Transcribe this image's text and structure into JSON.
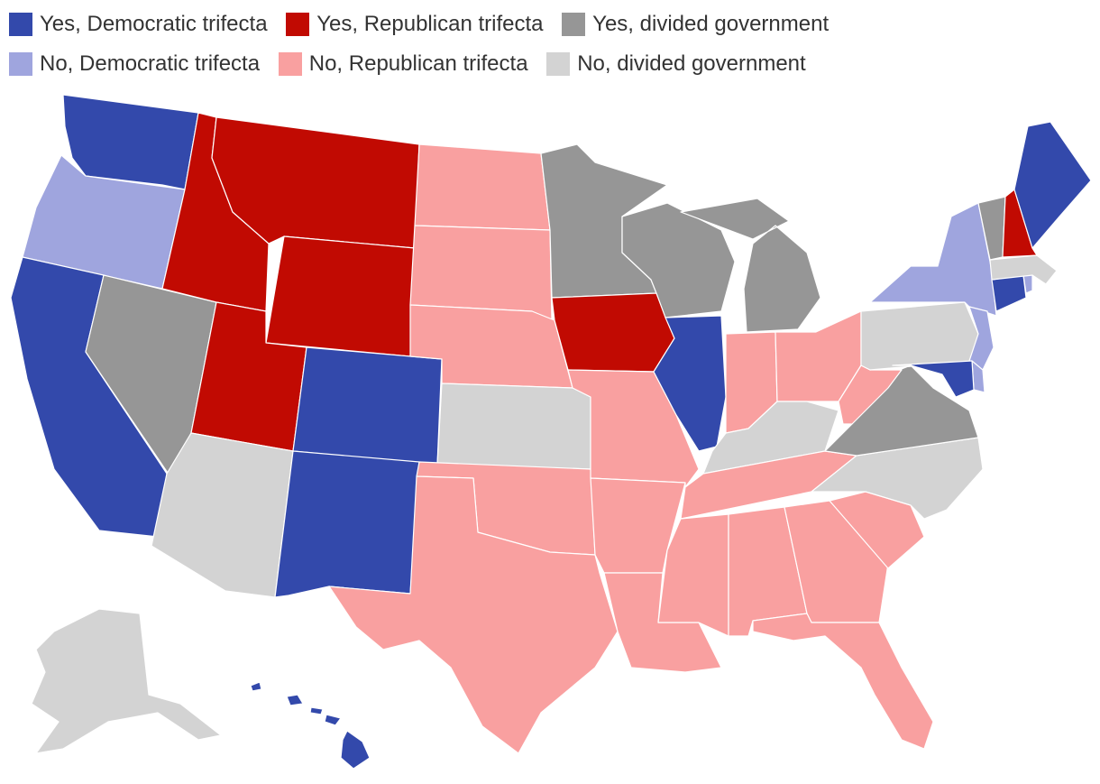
{
  "legend": [
    {
      "key": "dem_yes",
      "label": "Yes, Democratic trifecta",
      "color": "#3349ab"
    },
    {
      "key": "rep_yes",
      "label": "Yes, Republican trifecta",
      "color": "#c10a02"
    },
    {
      "key": "div_yes",
      "label": "Yes, divided government",
      "color": "#969696"
    },
    {
      "key": "dem_no",
      "label": "No, Democratic trifecta",
      "color": "#9fa5de"
    },
    {
      "key": "rep_no",
      "label": "No, Republican trifecta",
      "color": "#f9a0a0"
    },
    {
      "key": "div_no",
      "label": "No, divided government",
      "color": "#d3d3d3"
    }
  ],
  "states": {
    "WA": "dem_yes",
    "OR": "dem_no",
    "CA": "dem_yes",
    "NV": "div_yes",
    "ID": "rep_yes",
    "MT": "rep_yes",
    "WY": "rep_yes",
    "UT": "rep_yes",
    "AZ": "div_no",
    "CO": "dem_yes",
    "NM": "dem_yes",
    "ND": "rep_no",
    "SD": "rep_no",
    "NE": "rep_no",
    "KS": "div_no",
    "OK": "rep_no",
    "TX": "rep_no",
    "MN": "div_yes",
    "IA": "rep_yes",
    "MO": "rep_no",
    "AR": "rep_no",
    "LA": "rep_no",
    "WI": "div_yes",
    "IL": "dem_yes",
    "MI": "div_yes",
    "IN": "rep_no",
    "OH": "rep_no",
    "KY": "div_no",
    "TN": "rep_no",
    "MS": "rep_no",
    "AL": "rep_no",
    "GA": "rep_no",
    "FL": "rep_no",
    "SC": "rep_no",
    "NC": "div_no",
    "VA": "div_yes",
    "WV": "rep_no",
    "PA": "div_no",
    "NY": "dem_no",
    "NJ": "dem_no",
    "DE": "dem_no",
    "MD": "dem_yes",
    "CT": "dem_yes",
    "RI": "dem_no",
    "MA": "div_no",
    "VT": "div_yes",
    "NH": "rep_yes",
    "ME": "dem_yes",
    "AK": "div_no",
    "HI": "dem_yes"
  }
}
